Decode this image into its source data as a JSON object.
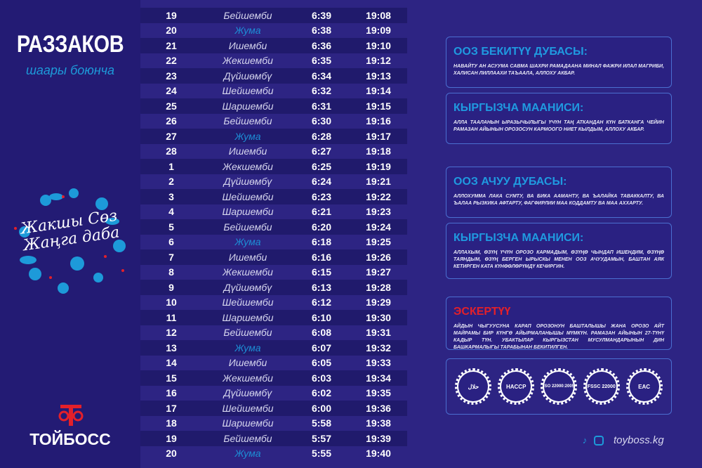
{
  "header": {
    "city": "РАЗЗАКОВ",
    "subtitle": "шаары боюнча"
  },
  "emblem": {
    "slogan_line1": "Жакшы Сөз",
    "slogan_line2": "Жаңга даба"
  },
  "brand": {
    "name": "ТОЙБОСС",
    "mark": "ꔹ"
  },
  "colors": {
    "background": "#2d2483",
    "accent": "#1d9ad9",
    "warning": "#e3202a"
  },
  "schedule": [
    [
      "19",
      "Бейшемби",
      "6:39",
      "19:08"
    ],
    [
      "20",
      "Жума",
      "6:38",
      "19:09"
    ],
    [
      "21",
      "Ишемби",
      "6:36",
      "19:10"
    ],
    [
      "22",
      "Жекшемби",
      "6:35",
      "19:12"
    ],
    [
      "23",
      "Дүйшөмбү",
      "6:34",
      "19:13"
    ],
    [
      "24",
      "Шейшемби",
      "6:32",
      "19:14"
    ],
    [
      "25",
      "Шаршемби",
      "6:31",
      "19:15"
    ],
    [
      "26",
      "Бейшемби",
      "6:30",
      "19:16"
    ],
    [
      "27",
      "Жума",
      "6:28",
      "19:17"
    ],
    [
      "28",
      "Ишемби",
      "6:27",
      "19:18"
    ],
    [
      "1",
      "Жекшемби",
      "6:25",
      "19:19"
    ],
    [
      "2",
      "Дүйшөмбү",
      "6:24",
      "19:21"
    ],
    [
      "3",
      "Шейшемби",
      "6:23",
      "19:22"
    ],
    [
      "4",
      "Шаршемби",
      "6:21",
      "19:23"
    ],
    [
      "5",
      "Бейшемби",
      "6:20",
      "19:24"
    ],
    [
      "6",
      "Жума",
      "6:18",
      "19:25"
    ],
    [
      "7",
      "Ишемби",
      "6:16",
      "19:26"
    ],
    [
      "8",
      "Жекшемби",
      "6:15",
      "19:27"
    ],
    [
      "9",
      "Дүйшөмбү",
      "6:13",
      "19:28"
    ],
    [
      "10",
      "Шейшемби",
      "6:12",
      "19:29"
    ],
    [
      "11",
      "Шаршемби",
      "6:10",
      "19:30"
    ],
    [
      "12",
      "Бейшемби",
      "6:08",
      "19:31"
    ],
    [
      "13",
      "Жума",
      "6:07",
      "19:32"
    ],
    [
      "14",
      "Ишемби",
      "6:05",
      "19:33"
    ],
    [
      "15",
      "Жекшемби",
      "6:03",
      "19:34"
    ],
    [
      "16",
      "Дүйшөмбү",
      "6:02",
      "19:35"
    ],
    [
      "17",
      "Шейшемби",
      "6:00",
      "19:36"
    ],
    [
      "18",
      "Шаршемби",
      "5:58",
      "19:38"
    ],
    [
      "19",
      "Бейшемби",
      "5:57",
      "19:39"
    ],
    [
      "20",
      "Жума",
      "5:55",
      "19:40"
    ]
  ],
  "boxes": [
    {
      "title": "ООЗ БЕКИТҮҮ ДУБАСЫ:",
      "text": "НАВАЙТУ АН АСУУМА САВМА ШАХРИ РАМАДААНА МИНАЛ ФАЖРИ ИЛАЛ МАГРИБИ, ХАЛИСАН ЛИЛЛААХИ ТАЪААЛА, АЛЛОХУ АКБАР."
    },
    {
      "title": "КЫРГЫЗЧА МААНИСИ:",
      "text": "АЛЛА ТААЛАНЫН ЫРАЗЫЧЫЛЫГЫ ҮЧҮН ТАҢ АТКАНДАН КҮН БАТКАНГА ЧЕЙИН РАМАЗАН АЙЫНЫН ОРОЗОСУН КАРМООГО НИЕТ КЫЛДЫМ, АЛЛОХУ АКБАР."
    },
    {
      "title": "ООЗ  АЧУУ ДУБАСЫ:",
      "text": "АЛЛОХУММА ЛАКА СУМТУ, ВА БИКА ААМАНТУ, ВА ЪАЛАЙКА ТАВАККАЛТУ, ВА ЪАЛАА РЫЗКИКА АФТАРТУ, ФАГФИРЛИИ МАА КОДДАМТУ ВА МАА АХХАРТУ."
    },
    {
      "title": "КЫРГЫЗЧА МААНИСИ:",
      "text": "АЛЛАХЫМ, ӨЗҮҢ ҮЧҮН ОРОЗО КАРМАДЫМ, ӨЗҮҢӨ ЧЫНДАП ИШЕНДИМ, ӨЗҮҢӨ  ТАЯНДЫМ, ӨЗҮҢ БЕРГЕН ЫРЫСКЫ МЕНЕН ООЗ АЧУУДАМЫН, БАШТАН АЯК КЕТИРГЕН КАТА КҮНӨӨЛӨРҮМДҮ КЕЧИРГИН."
    },
    {
      "title": "ЭСКЕРТҮҮ",
      "text": "АЙДЫН ЧЫГУУСУНА КАРАП ОРОЗОНУН БАШТАЛЫШЫ ЖАНА ОРОЗО АЙТ МАЙРАМЫ БИР КҮНГӨ АЙЫРМАЛАНЫШЫ МҮМКҮН. РАМАЗАН АЙЫНЫН 27-ТҮНҮ КАДЫР ТҮН. УБАКТЫЛАР КЫРГЫЗСТАН МУСУЛМАНДАРЫНЫН ДИН БАШКАРМАЛЫГЫ ТАРАБЫНАН БЕКИТИЛГЕН."
    }
  ],
  "certificates": [
    "حلال",
    "HACCP",
    "ISO 22000:2005",
    "FSSC 22000",
    "EAC"
  ],
  "footer": {
    "icons": [
      "tiktok-icon",
      "instagram-icon"
    ],
    "website": "toyboss.kg"
  }
}
